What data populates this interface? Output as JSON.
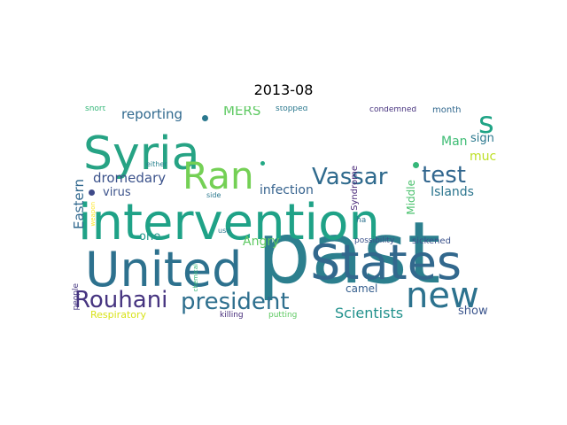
{
  "title": "2013-08",
  "words": [
    {
      "text": "past",
      "color": "#2c7f8e"
    },
    {
      "text": "Syria",
      "color": "#26a384"
    },
    {
      "text": "intervention",
      "color": "#1fa287"
    },
    {
      "text": "United",
      "color": "#2d718e"
    },
    {
      "text": "States",
      "color": "#32688d"
    },
    {
      "text": "Ran",
      "color": "#74d055"
    },
    {
      "text": "s",
      "color": "#20a486"
    },
    {
      "text": "new",
      "color": "#2c728e"
    },
    {
      "text": "test",
      "color": "#31668e"
    },
    {
      "text": "Vassar",
      "color": "#2f6a8d"
    },
    {
      "text": "president",
      "color": "#2e6f8e"
    },
    {
      "text": "Rouhani",
      "color": "#463480"
    },
    {
      "text": "reporting",
      "color": "#30698e"
    },
    {
      "text": "MERS",
      "color": "#5ec962"
    },
    {
      "text": "Eastern",
      "color": "#31688e"
    },
    {
      "text": "dromedary",
      "color": "#3b528b"
    },
    {
      "text": "virus",
      "color": "#3b528b"
    },
    {
      "text": "infection",
      "color": "#34618d"
    },
    {
      "text": "Islands",
      "color": "#2b758e"
    },
    {
      "text": "Middle",
      "color": "#4ac16d"
    },
    {
      "text": "Man",
      "color": "#3dbc74"
    },
    {
      "text": "sign",
      "color": "#2a788e"
    },
    {
      "text": "much",
      "color": "#bddf26"
    },
    {
      "text": "one",
      "color": "#1f988b"
    },
    {
      "text": "Angry",
      "color": "#5ec962"
    },
    {
      "text": "camel",
      "color": "#355e8d"
    },
    {
      "text": "Scientists",
      "color": "#21918c"
    },
    {
      "text": "show",
      "color": "#3a548c"
    },
    {
      "text": "Respiratory",
      "color": "#d8e219"
    },
    {
      "text": "killing",
      "color": "#472d7b"
    },
    {
      "text": "putting",
      "color": "#5ec962"
    },
    {
      "text": "blaming",
      "color": "#433e85"
    },
    {
      "text": "short",
      "color": "#35b779"
    },
    {
      "text": "stopped",
      "color": "#2a788e"
    },
    {
      "text": "condemned",
      "color": "#46327e"
    },
    {
      "text": "month",
      "color": "#31688e"
    },
    {
      "text": "Syndrome",
      "color": "#482878"
    },
    {
      "text": "weapon",
      "color": "#fde725"
    },
    {
      "text": "either",
      "color": "#26828e"
    },
    {
      "text": "side",
      "color": "#2a788e"
    },
    {
      "text": "chemical",
      "color": "#35b779"
    },
    {
      "text": "use",
      "color": "#2a788e"
    },
    {
      "text": "ha",
      "color": "#2c728e"
    },
    {
      "text": "possibility",
      "color": "#3b528b"
    },
    {
      "text": "sickened",
      "color": "#3b528b"
    },
    {
      "text": "people",
      "color": "#453781"
    },
    {
      "text": "dot-1",
      "color": "#2a788e"
    },
    {
      "text": "dot-2",
      "color": "#3e4a89"
    },
    {
      "text": "dot-3",
      "color": "#35b779"
    },
    {
      "text": "dot-4",
      "color": "#22a884"
    }
  ]
}
